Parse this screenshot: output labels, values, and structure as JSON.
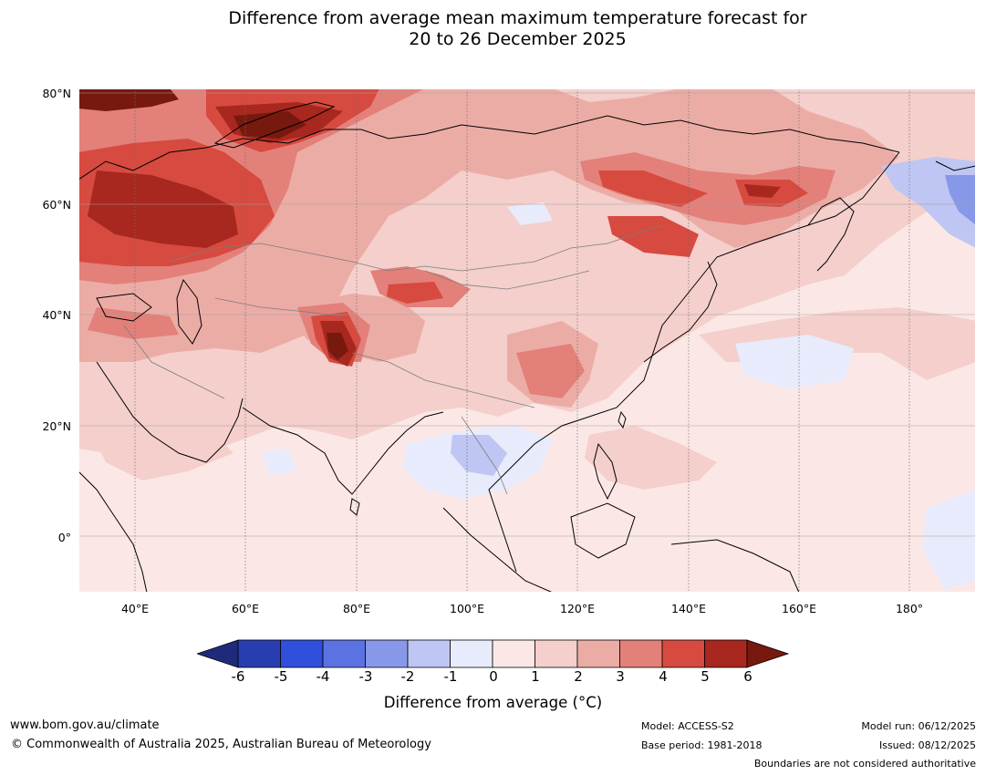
{
  "title": {
    "line1": "Difference from average mean maximum temperature forecast for",
    "line2": "20 to 26 December 2025"
  },
  "axes": {
    "lat_labels": [
      "80°N",
      "60°N",
      "40°N",
      "20°N",
      "0°"
    ],
    "lon_labels": [
      "40°E",
      "60°E",
      "80°E",
      "100°E",
      "120°E",
      "140°E",
      "160°E",
      "180°"
    ],
    "lat_range_deg": [
      -10,
      81
    ],
    "lon_range_deg": [
      30,
      192
    ]
  },
  "colorbar": {
    "ticks": [
      "-6",
      "-5",
      "-4",
      "-3",
      "-2",
      "-1",
      "0",
      "1",
      "2",
      "3",
      "4",
      "5",
      "6"
    ],
    "colors": [
      "#1f2b7a",
      "#283eb0",
      "#2f4fdc",
      "#5b72e2",
      "#8898e9",
      "#bfc6f3",
      "#e8ebfb",
      "#fbe8e6",
      "#f4cfcb",
      "#ecaca6",
      "#e3807a",
      "#d64a40",
      "#a8271e",
      "#78190f"
    ],
    "label": "Difference from average (°C)"
  },
  "footer": {
    "website": "www.bom.gov.au/climate",
    "copyright": "© Commonwealth of Australia 2025, Australian Bureau of Meteorology",
    "model": "Model: ACCESS-S2",
    "base_period": "Base period: 1981-2018",
    "model_run": "Model run: 06/12/2025",
    "issued": "Issued: 08/12/2025",
    "disclaimer": "Boundaries are not considered authoritative"
  }
}
